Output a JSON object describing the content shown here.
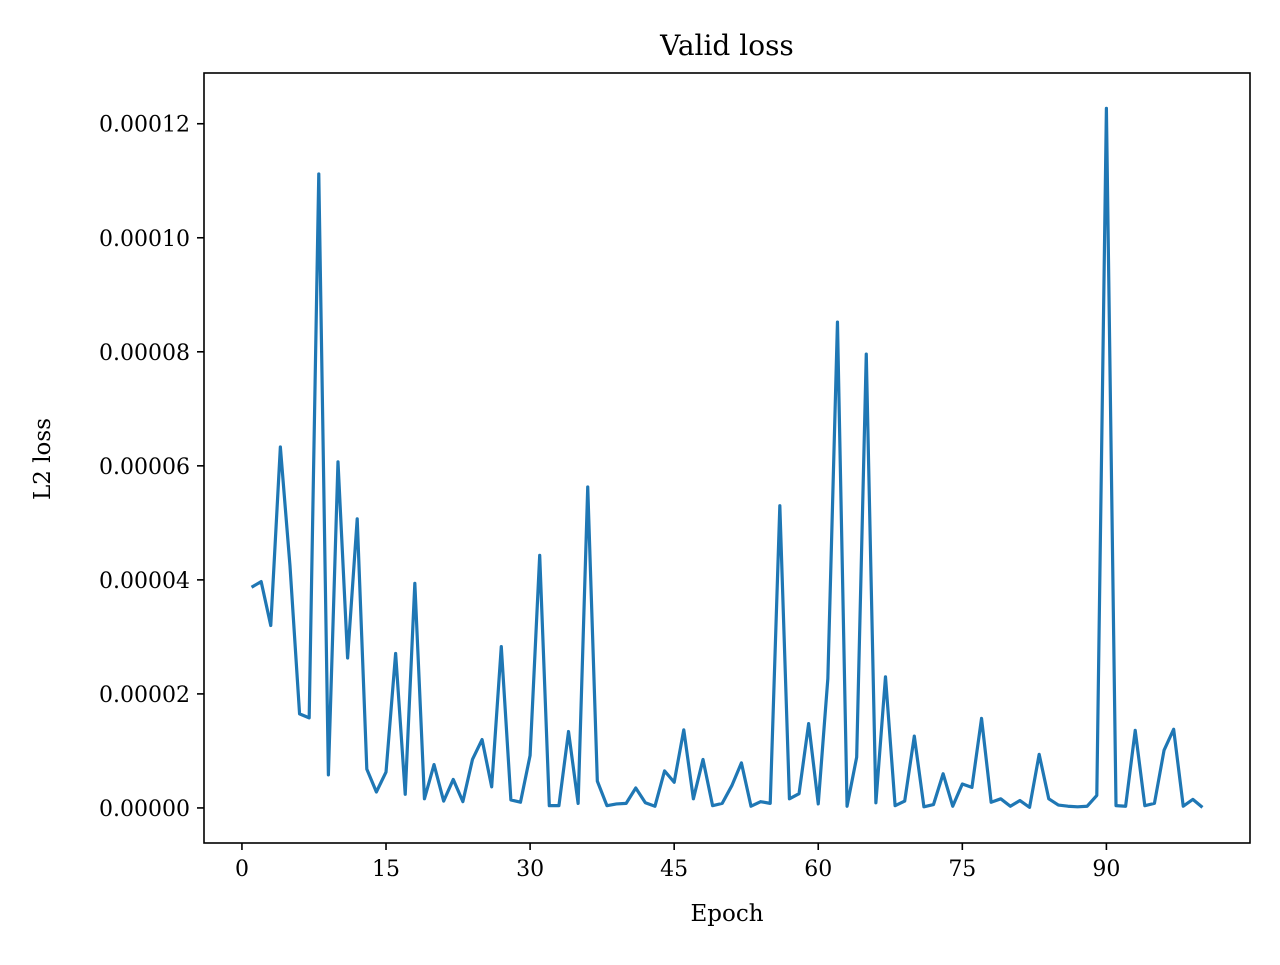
{
  "chart_data": {
    "type": "line",
    "title": "Valid loss",
    "xlabel": "Epoch",
    "ylabel": "L2 loss",
    "xlim": [
      -3.95,
      104.95
    ],
    "ylim": [
      -6.15e-06,
      0.0001289
    ],
    "xticks": [
      0,
      15,
      30,
      45,
      60,
      75,
      90
    ],
    "xtick_labels": [
      "0",
      "15",
      "30",
      "45",
      "60",
      "75",
      "90"
    ],
    "yticks": [
      0.0,
      2e-05,
      4e-05,
      6e-05,
      8e-05,
      0.0001,
      0.00012
    ],
    "ytick_labels": [
      "0.00000",
      "0.00002",
      "0.00004",
      "0.00006",
      "0.00008",
      "0.00010",
      "0.00012"
    ],
    "grid": false,
    "legend": false,
    "line_color": "#1f77b4",
    "series": [
      {
        "x": [
          1,
          2,
          3,
          4,
          5,
          6,
          7,
          8,
          9,
          10,
          11,
          12,
          13,
          14,
          15,
          16,
          17,
          18,
          19,
          20,
          21,
          22,
          23,
          24,
          25,
          26,
          27,
          28,
          29,
          30,
          31,
          32,
          33,
          34,
          35,
          36,
          37,
          38,
          39,
          40,
          41,
          42,
          43,
          44,
          45,
          46,
          47,
          48,
          49,
          50,
          51,
          52,
          53,
          54,
          55,
          56,
          57,
          58,
          59,
          60,
          61,
          62,
          63,
          64,
          65,
          66,
          67,
          68,
          69,
          70,
          71,
          72,
          73,
          74,
          75,
          76,
          77,
          78,
          79,
          80,
          81,
          82,
          83,
          84,
          85,
          86,
          87,
          88,
          89,
          90,
          91,
          92,
          93,
          94,
          95,
          96,
          97,
          98,
          99,
          100
        ],
        "values": [
          3.87e-05,
          3.97e-05,
          3.2e-05,
          6.33e-05,
          4.25e-05,
          1.65e-05,
          1.58e-05,
          0.0001112,
          5.8e-06,
          6.07e-05,
          2.63e-05,
          5.07e-05,
          6.8e-06,
          2.8e-06,
          6.3e-06,
          2.71e-05,
          2.4e-06,
          3.94e-05,
          1.6e-06,
          7.6e-06,
          1.2e-06,
          5e-06,
          1.1e-06,
          8.5e-06,
          1.2e-05,
          3.7e-06,
          2.83e-05,
          1.4e-06,
          1e-06,
          9.2e-06,
          4.43e-05,
          4e-07,
          4e-07,
          1.34e-05,
          8e-07,
          5.63e-05,
          4.7e-06,
          4e-07,
          7e-07,
          8e-07,
          3.5e-06,
          9e-07,
          3e-07,
          6.5e-06,
          4.5e-06,
          1.37e-05,
          1.6e-06,
          8.5e-06,
          4e-07,
          8e-07,
          3.9e-06,
          7.9e-06,
          3e-07,
          1.1e-06,
          8e-07,
          5.3e-05,
          1.6e-06,
          2.5e-06,
          1.48e-05,
          7e-07,
          2.27e-05,
          8.52e-05,
          3e-07,
          8.9e-06,
          7.96e-05,
          9e-07,
          2.3e-05,
          4e-07,
          1.2e-06,
          1.26e-05,
          2e-07,
          6e-07,
          6e-06,
          3e-07,
          4.2e-06,
          3.6e-06,
          1.57e-05,
          1e-06,
          1.6e-06,
          3e-07,
          1.3e-06,
          1e-07,
          9.4e-06,
          1.6e-06,
          5e-07,
          3e-07,
          2e-07,
          3e-07,
          2.2e-06,
          0.0001227,
          4e-07,
          3e-07,
          1.36e-05,
          4e-07,
          8e-07,
          1.01e-05,
          1.38e-05,
          3e-07,
          1.5e-06,
          1e-07
        ]
      }
    ]
  }
}
